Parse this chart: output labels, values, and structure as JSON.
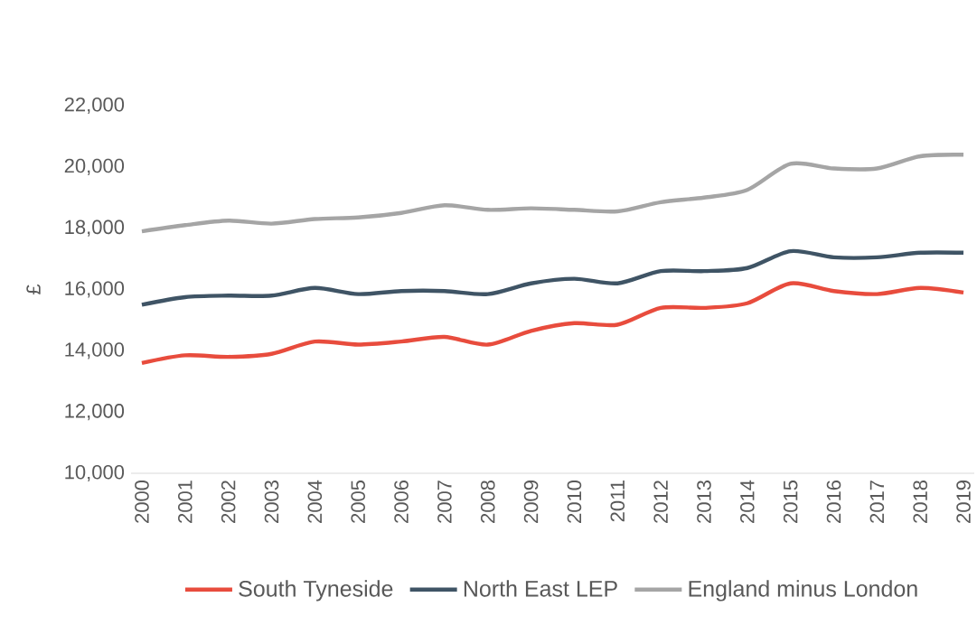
{
  "chart_data": {
    "type": "line",
    "ylabel": "£",
    "categories": [
      "2000",
      "2001",
      "2002",
      "2003",
      "2004",
      "2005",
      "2006",
      "2007",
      "2008",
      "2009",
      "2010",
      "2011",
      "2012",
      "2013",
      "2014",
      "2015",
      "2016",
      "2017",
      "2018",
      "2019"
    ],
    "series": [
      {
        "name": "South Tyneside",
        "color": "#e84c3d",
        "values": [
          13600,
          13850,
          13800,
          13900,
          14300,
          14200,
          14300,
          14450,
          14200,
          14650,
          14900,
          14850,
          15400,
          15400,
          15550,
          16200,
          15950,
          15850,
          16050,
          15900
        ]
      },
      {
        "name": "North East LEP",
        "color": "#3f5465",
        "values": [
          15500,
          15750,
          15800,
          15800,
          16050,
          15850,
          15950,
          15950,
          15850,
          16200,
          16350,
          16200,
          16600,
          16600,
          16700,
          17250,
          17050,
          17050,
          17200,
          17200
        ]
      },
      {
        "name": "England minus London",
        "color": "#a5a5a5",
        "values": [
          17900,
          18100,
          18250,
          18150,
          18300,
          18350,
          18500,
          18750,
          18600,
          18650,
          18600,
          18550,
          18850,
          19000,
          19250,
          20100,
          19950,
          19950,
          20350,
          20400
        ]
      }
    ],
    "ylim": [
      10000,
      22000
    ],
    "yticks": [
      {
        "value": 10000,
        "label": "10,000"
      },
      {
        "value": 12000,
        "label": "12,000"
      },
      {
        "value": 14000,
        "label": "14,000"
      },
      {
        "value": 16000,
        "label": "16,000"
      },
      {
        "value": 18000,
        "label": "18,000"
      },
      {
        "value": 20000,
        "label": "20,000"
      },
      {
        "value": 22000,
        "label": "22,000"
      }
    ],
    "legend": "bottom"
  }
}
